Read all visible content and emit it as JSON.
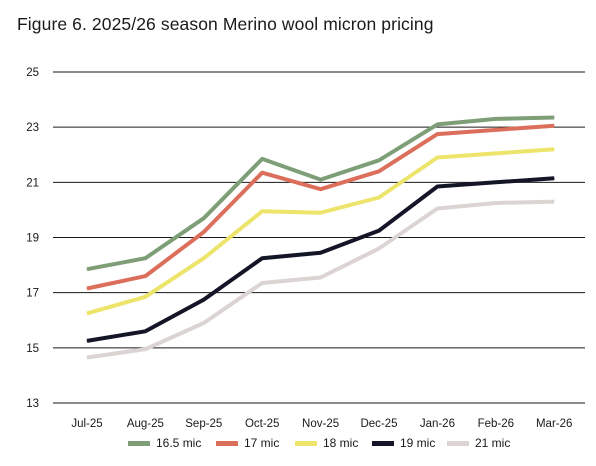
{
  "chart_data": {
    "type": "line",
    "title": "Figure 6. 2025/26 season Merino wool micron pricing",
    "xlabel": "",
    "ylabel": "",
    "ylim": [
      13,
      25
    ],
    "yticks": [
      "13",
      "15",
      "17",
      "19",
      "21",
      "23",
      "25"
    ],
    "categories": [
      "Jul-25",
      "Aug-25",
      "Sep-25",
      "Oct-25",
      "Nov-25",
      "Dec-25",
      "Jan-26",
      "Feb-26",
      "Mar-26"
    ],
    "grid": "horizontal",
    "legend_position": "bottom",
    "series": [
      {
        "name": "16.5 mic",
        "color": "#7d9e77",
        "values": [
          17.85,
          18.25,
          19.7,
          21.85,
          21.1,
          21.8,
          23.1,
          23.3,
          23.35
        ]
      },
      {
        "name": "17 mic",
        "color": "#dc6f5c",
        "values": [
          17.15,
          17.6,
          19.2,
          21.35,
          20.75,
          21.4,
          22.75,
          22.9,
          23.05
        ]
      },
      {
        "name": "18 mic",
        "color": "#ede46b",
        "values": [
          16.25,
          16.85,
          18.25,
          19.95,
          19.9,
          20.45,
          21.9,
          22.05,
          22.2
        ]
      },
      {
        "name": "19 mic",
        "color": "#141628",
        "values": [
          15.25,
          15.6,
          16.75,
          18.25,
          18.45,
          19.25,
          20.85,
          21.0,
          21.15
        ]
      },
      {
        "name": "21 mic",
        "color": "#dcd3d3",
        "values": [
          14.65,
          14.95,
          15.9,
          17.35,
          17.55,
          18.6,
          20.05,
          20.25,
          20.3
        ]
      }
    ]
  }
}
